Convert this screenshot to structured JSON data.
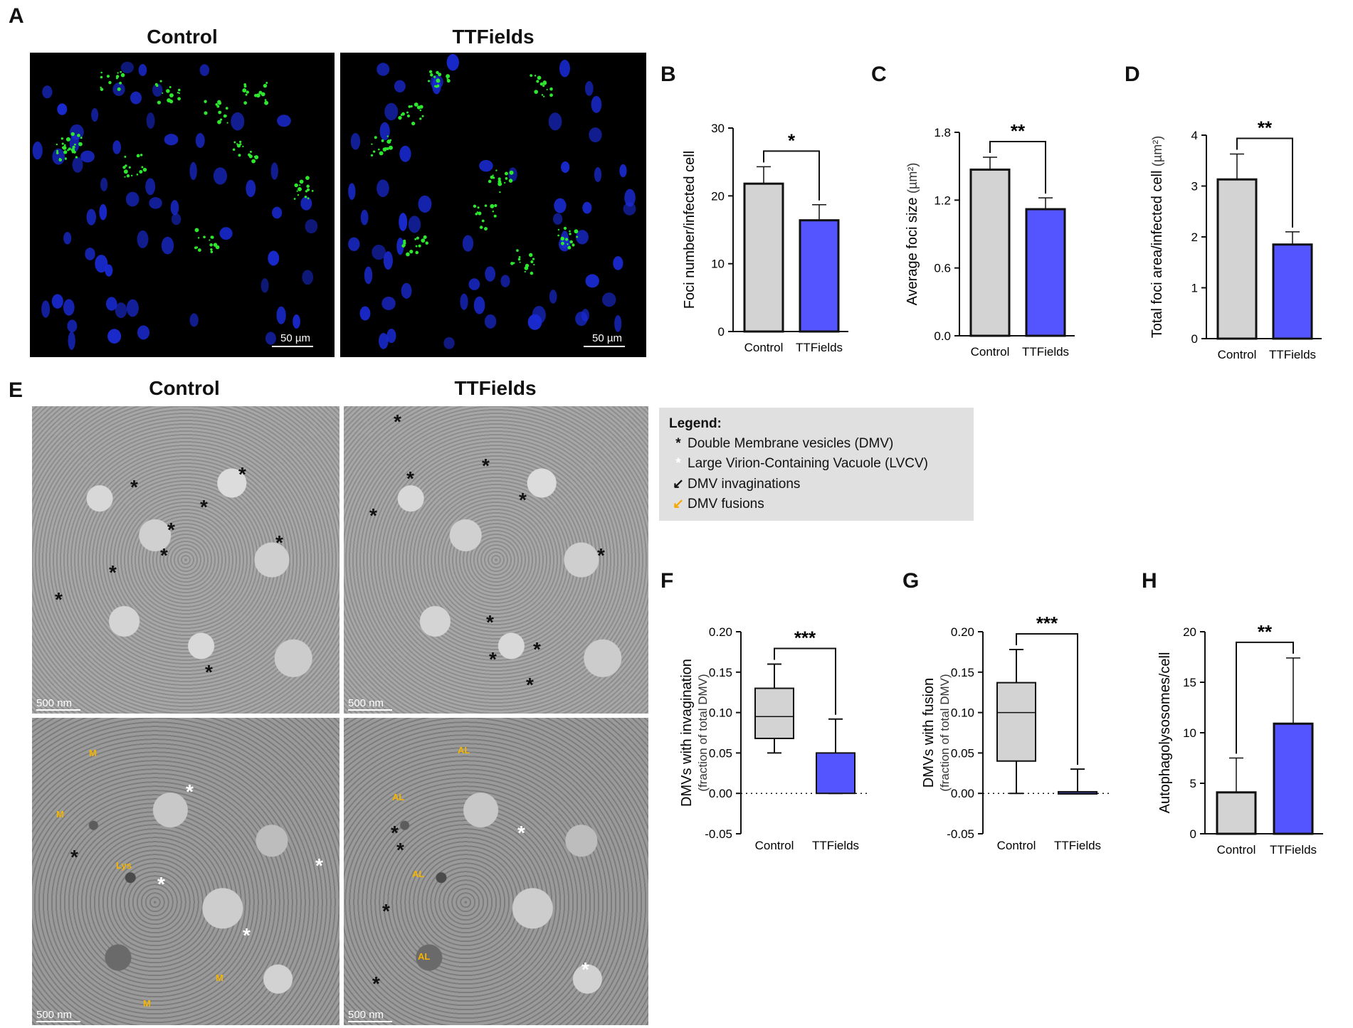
{
  "panel_letters": {
    "A": "A",
    "B": "B",
    "C": "C",
    "D": "D",
    "E": "E",
    "F": "F",
    "G": "G",
    "H": "H"
  },
  "image_titles": {
    "a_control": "Control",
    "a_ttfields": "TTFields",
    "e_control": "Control",
    "e_ttfields": "TTFields"
  },
  "scale_labels": {
    "fluor": "50 µm",
    "tem": "500 nm"
  },
  "tem_markers": {
    "star": "*"
  },
  "tem_organelles": {
    "m": "M",
    "lys": "Lys",
    "al": "AL"
  },
  "legend": {
    "title": "Legend:",
    "items": [
      {
        "symbol": "*",
        "label": "Double Membrane vesicles (DMV)",
        "color": "#111111"
      },
      {
        "symbol": "*",
        "label": "Large Virion-Containing Vacuole (LVCV)",
        "color": "#ffffff"
      },
      {
        "symbol": "↙",
        "label": "DMV invaginations",
        "color": "#111111"
      },
      {
        "symbol": "↙",
        "label": "DMV fusions",
        "color": "#f5a800"
      }
    ]
  },
  "colors": {
    "control": "#d3d3d3",
    "ttfields": "#5555ff",
    "nuclei": "#1a2bd6",
    "foci": "#2ee82e",
    "arrow_orange": "#f5a800"
  },
  "chart_data": [
    {
      "panel": "B",
      "type": "bar",
      "categories": [
        "Control",
        "TTFields"
      ],
      "values": [
        21.8,
        16.4
      ],
      "errors": [
        2.5,
        2.3
      ],
      "ylabel": "Foci number/infected cell",
      "ylim": [
        0,
        30
      ],
      "yticks": [
        "0",
        "10",
        "20",
        "30"
      ],
      "significance": "*"
    },
    {
      "panel": "C",
      "type": "bar",
      "categories": [
        "Control",
        "TTFields"
      ],
      "values": [
        1.47,
        1.12
      ],
      "errors": [
        0.11,
        0.1
      ],
      "ylabel": "Average foci size",
      "yunit": "(µm²)",
      "ylim": [
        0,
        1.8
      ],
      "yticks": [
        "0.0",
        "0.6",
        "1.2",
        "1.8"
      ],
      "significance": "**"
    },
    {
      "panel": "D",
      "type": "bar",
      "categories": [
        "Control",
        "TTFields"
      ],
      "values": [
        3.13,
        1.85
      ],
      "errors": [
        0.5,
        0.25
      ],
      "ylabel": "Total foci area/infected cell",
      "yunit": "(µm²)",
      "ylim": [
        0,
        4
      ],
      "yticks": [
        "0",
        "1",
        "2",
        "3",
        "4"
      ],
      "significance": "**"
    },
    {
      "panel": "F",
      "type": "box",
      "categories": [
        "Control",
        "TTFields"
      ],
      "boxes": [
        {
          "min": 0.05,
          "q1": 0.068,
          "median": 0.095,
          "q3": 0.13,
          "max": 0.16
        },
        {
          "min": 0.0,
          "q1": 0.0,
          "median": 0.0,
          "q3": 0.05,
          "max": 0.092
        }
      ],
      "ylabel": "DMVs with invagination",
      "ysublabel": "(fraction of total DMV)",
      "ylim": [
        -0.05,
        0.2
      ],
      "yticks": [
        "-0.05",
        "0.00",
        "0.05",
        "0.10",
        "0.15",
        "0.20"
      ],
      "significance": "***"
    },
    {
      "panel": "G",
      "type": "box",
      "categories": [
        "Control",
        "TTFields"
      ],
      "boxes": [
        {
          "min": 0.0,
          "q1": 0.04,
          "median": 0.1,
          "q3": 0.137,
          "max": 0.178
        },
        {
          "min": 0.0,
          "q1": 0.0,
          "median": 0.0,
          "q3": 0.002,
          "max": 0.03
        }
      ],
      "ylabel": "DMVs with fusion",
      "ysublabel": "(fraction of total DMV)",
      "ylim": [
        -0.05,
        0.2
      ],
      "yticks": [
        "-0.05",
        "0.00",
        "0.05",
        "0.10",
        "0.15",
        "0.20"
      ],
      "significance": "***"
    },
    {
      "panel": "H",
      "type": "bar",
      "categories": [
        "Control",
        "TTFields"
      ],
      "values": [
        4.1,
        10.9
      ],
      "errors": [
        3.4,
        6.5
      ],
      "ylabel": "Autophagolysosomes/cell",
      "ylim": [
        0,
        20
      ],
      "yticks": [
        "0",
        "5",
        "10",
        "15",
        "20"
      ],
      "significance": "**"
    }
  ]
}
